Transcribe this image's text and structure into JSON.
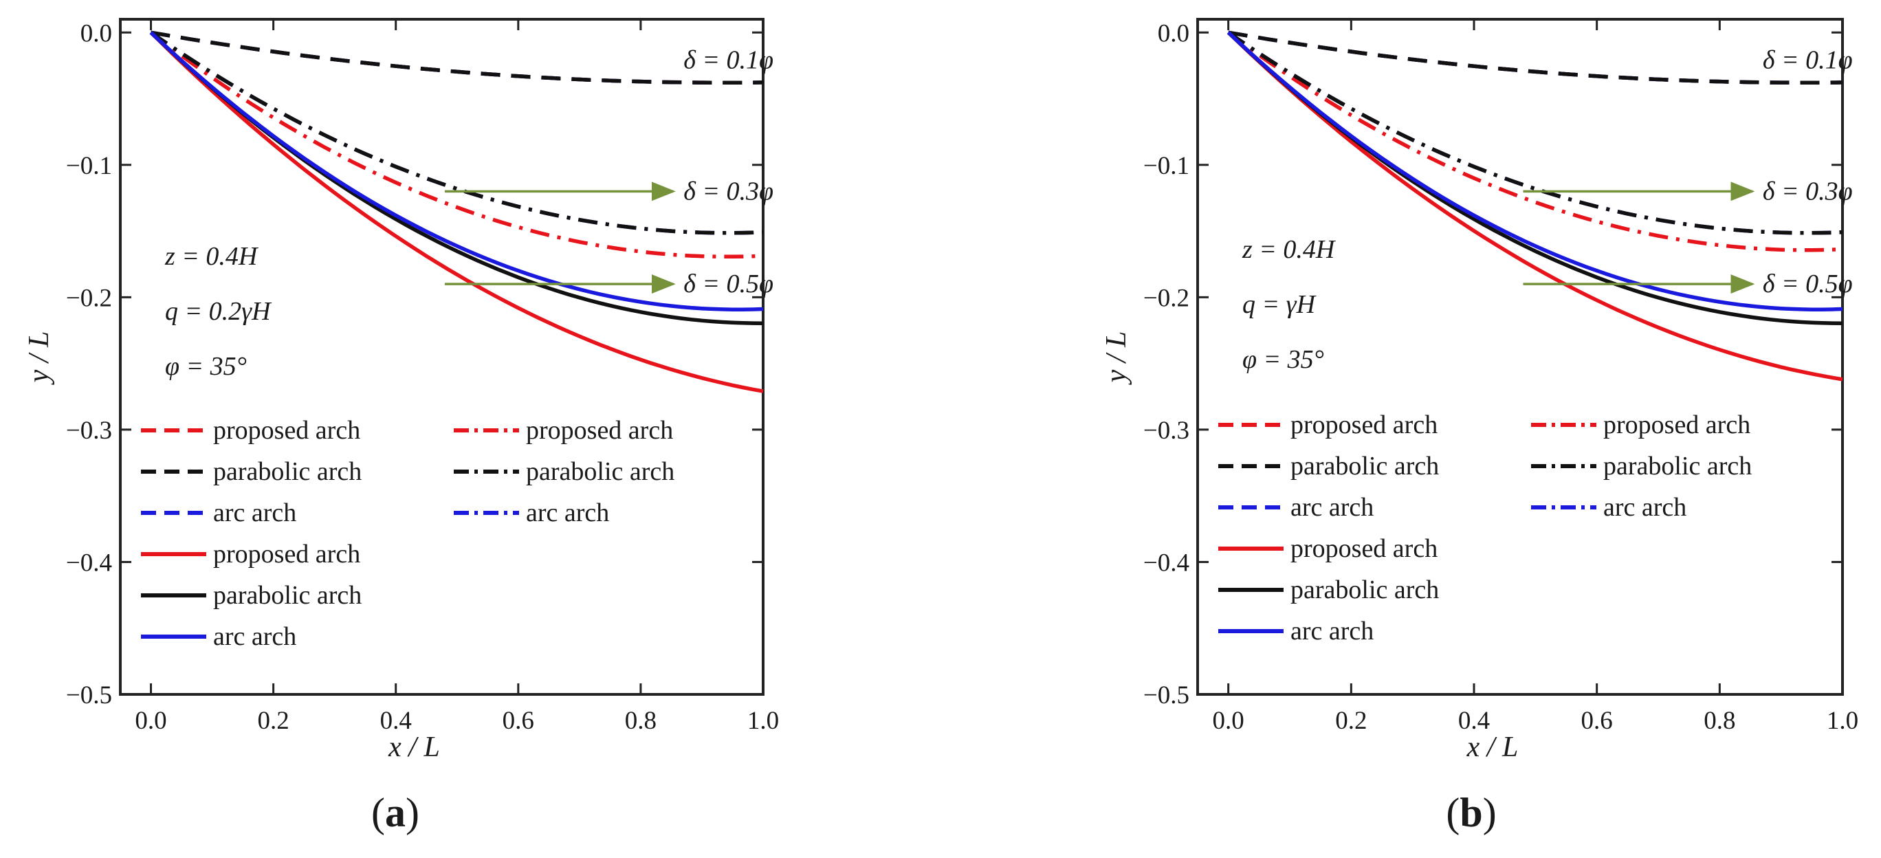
{
  "chart_data": [
    {
      "panel": "a",
      "type": "line",
      "caption": {
        "open": "(",
        "letter": "a",
        "close": ")"
      },
      "xlabel": "x / L",
      "ylabel": "y / L",
      "xlim": [
        -0.05,
        1.0
      ],
      "ylim": [
        -0.5,
        0.01
      ],
      "xticks": [
        "0.0",
        "0.2",
        "0.4",
        "0.6",
        "0.8",
        "1.0"
      ],
      "xtick_values": [
        0.0,
        0.2,
        0.4,
        0.6,
        0.8,
        1.0
      ],
      "yticks": [
        "0.0",
        "−0.1",
        "−0.2",
        "−0.3",
        "−0.4",
        "−0.5"
      ],
      "ytick_values": [
        0.0,
        -0.1,
        -0.2,
        -0.3,
        -0.4,
        -0.5
      ],
      "params": [
        "z = 0.4H",
        "q = 0.2γH",
        "φ = 35°"
      ],
      "annotations": [
        {
          "text": "δ = 0.1φ",
          "x": 0.87,
          "y": -0.021
        },
        {
          "text": "δ = 0.3φ",
          "x": 0.87,
          "y": -0.12,
          "arrow_from_x": 0.48,
          "arrow_to_x": 0.86
        },
        {
          "text": "δ = 0.5φ",
          "x": 0.87,
          "y": -0.19,
          "arrow_from_x": 0.48,
          "arrow_to_x": 0.86
        }
      ],
      "legend": [
        {
          "label": "proposed arch",
          "color": "#e8141b",
          "style": "dashed"
        },
        {
          "label": "parabolic arch",
          "color": "#111111",
          "style": "dashed"
        },
        {
          "label": "arc arch",
          "color": "#1a1adf",
          "style": "dashed"
        },
        {
          "label": "proposed arch",
          "color": "#e8141b",
          "style": "solid"
        },
        {
          "label": "parabolic arch",
          "color": "#111111",
          "style": "solid"
        },
        {
          "label": "arc arch",
          "color": "#1a1adf",
          "style": "solid"
        },
        {
          "label": "proposed arch",
          "color": "#e8141b",
          "style": "dashdot"
        },
        {
          "label": "parabolic arch",
          "color": "#111111",
          "style": "dashdot"
        },
        {
          "label": "arc arch",
          "color": "#1a1adf",
          "style": "dashdot"
        }
      ],
      "series": [
        {
          "name": "proposed arch (δ = 0.1φ)",
          "color": "#e8141b",
          "style": "dashed",
          "x": [
            0,
            0.2,
            0.4,
            0.6,
            0.8,
            1.0
          ],
          "y": [
            0,
            -0.0146,
            -0.0256,
            -0.033,
            -0.0366,
            -0.038
          ]
        },
        {
          "name": "arc arch (δ = 0.1φ)",
          "color": "#1a1adf",
          "style": "dashed",
          "x": [
            0,
            0.2,
            0.4,
            0.6,
            0.8,
            1.0
          ],
          "y": [
            0,
            -0.0146,
            -0.0256,
            -0.033,
            -0.0366,
            -0.038
          ]
        },
        {
          "name": "parabolic arch (δ = 0.1φ)",
          "color": "#111111",
          "style": "dashed",
          "x": [
            0,
            0.2,
            0.4,
            0.6,
            0.8,
            1.0
          ],
          "y": [
            0,
            -0.0146,
            -0.0256,
            -0.033,
            -0.0366,
            -0.038
          ]
        },
        {
          "name": "proposed arch (δ = 0.3φ)",
          "color": "#e8141b",
          "style": "dashdot",
          "x": [
            0,
            0.2,
            0.4,
            0.6,
            0.8,
            1.0
          ],
          "y": [
            0,
            -0.0653,
            -0.1143,
            -0.1469,
            -0.1633,
            -0.17
          ]
        },
        {
          "name": "arc arch (δ = 0.3φ)",
          "color": "#1a1adf",
          "style": "dashdot",
          "x": [
            0,
            0.2,
            0.4,
            0.6,
            0.8,
            1.0
          ],
          "y": [
            0,
            -0.0584,
            -0.1022,
            -0.1314,
            -0.146,
            -0.152
          ]
        },
        {
          "name": "parabolic arch (δ = 0.3φ)",
          "color": "#111111",
          "style": "dashdot",
          "x": [
            0,
            0.2,
            0.4,
            0.6,
            0.8,
            1.0
          ],
          "y": [
            0,
            -0.0584,
            -0.1022,
            -0.1314,
            -0.146,
            -0.152
          ]
        },
        {
          "name": "proposed arch (δ = 0.5φ)",
          "color": "#e8141b",
          "style": "solid",
          "x": [
            0,
            0.2,
            0.4,
            0.6,
            0.8,
            1.0
          ],
          "y": [
            0,
            -0.0845,
            -0.1538,
            -0.2081,
            -0.2472,
            -0.271
          ]
        },
        {
          "name": "parabolic arch (δ = 0.5φ)",
          "color": "#111111",
          "style": "solid",
          "x": [
            0,
            0.2,
            0.4,
            0.6,
            0.8,
            1.0
          ],
          "y": [
            0,
            -0.0799,
            -0.1412,
            -0.1848,
            -0.2106,
            -0.22
          ]
        },
        {
          "name": "arc arch (δ = 0.5φ)",
          "color": "#1a1adf",
          "style": "solid",
          "x": [
            0,
            0.2,
            0.4,
            0.6,
            0.8,
            1.0
          ],
          "y": [
            0,
            -0.0799,
            -0.1389,
            -0.1791,
            -0.202,
            -0.21
          ]
        }
      ]
    },
    {
      "panel": "b",
      "type": "line",
      "caption": {
        "open": "(",
        "letter": "b",
        "close": ")"
      },
      "xlabel": "x / L",
      "ylabel": "y / L",
      "xlim": [
        -0.05,
        1.0
      ],
      "ylim": [
        -0.5,
        0.01
      ],
      "xticks": [
        "0.0",
        "0.2",
        "0.4",
        "0.6",
        "0.8",
        "1.0"
      ],
      "xtick_values": [
        0.0,
        0.2,
        0.4,
        0.6,
        0.8,
        1.0
      ],
      "yticks": [
        "0.0",
        "−0.1",
        "−0.2",
        "−0.3",
        "−0.4",
        "−0.5"
      ],
      "ytick_values": [
        0.0,
        -0.1,
        -0.2,
        -0.3,
        -0.4,
        -0.5
      ],
      "params": [
        "z = 0.4H",
        "q = γH",
        "φ = 35°"
      ],
      "annotations": [
        {
          "text": "δ = 0.1φ",
          "x": 0.87,
          "y": -0.021
        },
        {
          "text": "δ = 0.3φ",
          "x": 0.87,
          "y": -0.12,
          "arrow_from_x": 0.48,
          "arrow_to_x": 0.86
        },
        {
          "text": "δ = 0.5φ",
          "x": 0.87,
          "y": -0.19,
          "arrow_from_x": 0.48,
          "arrow_to_x": 0.86
        }
      ],
      "legend": [
        {
          "label": "proposed arch",
          "color": "#e8141b",
          "style": "dashed"
        },
        {
          "label": "parabolic arch",
          "color": "#111111",
          "style": "dashed"
        },
        {
          "label": "arc arch",
          "color": "#1a1adf",
          "style": "dashed"
        },
        {
          "label": "proposed arch",
          "color": "#e8141b",
          "style": "solid"
        },
        {
          "label": "parabolic arch",
          "color": "#111111",
          "style": "solid"
        },
        {
          "label": "arc arch",
          "color": "#1a1adf",
          "style": "solid"
        },
        {
          "label": "proposed arch",
          "color": "#e8141b",
          "style": "dashdot"
        },
        {
          "label": "parabolic arch",
          "color": "#111111",
          "style": "dashdot"
        },
        {
          "label": "arc arch",
          "color": "#1a1adf",
          "style": "dashdot"
        }
      ],
      "series": [
        {
          "name": "proposed arch (δ = 0.1φ)",
          "color": "#e8141b",
          "style": "dashed",
          "x": [
            0,
            0.2,
            0.4,
            0.6,
            0.8,
            1.0
          ],
          "y": [
            0,
            -0.0146,
            -0.0256,
            -0.033,
            -0.0366,
            -0.038
          ]
        },
        {
          "name": "arc arch (δ = 0.1φ)",
          "color": "#1a1adf",
          "style": "dashed",
          "x": [
            0,
            0.2,
            0.4,
            0.6,
            0.8,
            1.0
          ],
          "y": [
            0,
            -0.0146,
            -0.0256,
            -0.033,
            -0.0366,
            -0.038
          ]
        },
        {
          "name": "parabolic arch (δ = 0.1φ)",
          "color": "#111111",
          "style": "dashed",
          "x": [
            0,
            0.2,
            0.4,
            0.6,
            0.8,
            1.0
          ],
          "y": [
            0,
            -0.0146,
            -0.0256,
            -0.033,
            -0.0366,
            -0.038
          ]
        },
        {
          "name": "proposed arch (δ = 0.3φ)",
          "color": "#e8141b",
          "style": "dashdot",
          "x": [
            0,
            0.2,
            0.4,
            0.6,
            0.8,
            1.0
          ],
          "y": [
            0,
            -0.0634,
            -0.111,
            -0.1426,
            -0.1585,
            -0.165
          ]
        },
        {
          "name": "arc arch (δ = 0.3φ)",
          "color": "#1a1adf",
          "style": "dashdot",
          "x": [
            0,
            0.2,
            0.4,
            0.6,
            0.8,
            1.0
          ],
          "y": [
            0,
            -0.0584,
            -0.1022,
            -0.1314,
            -0.146,
            -0.152
          ]
        },
        {
          "name": "parabolic arch (δ = 0.3φ)",
          "color": "#111111",
          "style": "dashdot",
          "x": [
            0,
            0.2,
            0.4,
            0.6,
            0.8,
            1.0
          ],
          "y": [
            0,
            -0.0584,
            -0.1022,
            -0.1314,
            -0.146,
            -0.152
          ]
        },
        {
          "name": "proposed arch (δ = 0.5φ)",
          "color": "#e8141b",
          "style": "solid",
          "x": [
            0,
            0.2,
            0.4,
            0.6,
            0.8,
            1.0
          ],
          "y": [
            0,
            -0.0824,
            -0.1498,
            -0.2023,
            -0.2397,
            -0.262
          ]
        },
        {
          "name": "parabolic arch (δ = 0.5φ)",
          "color": "#111111",
          "style": "solid",
          "x": [
            0,
            0.2,
            0.4,
            0.6,
            0.8,
            1.0
          ],
          "y": [
            0,
            -0.0799,
            -0.1412,
            -0.1848,
            -0.2106,
            -0.22
          ]
        },
        {
          "name": "arc arch (δ = 0.5φ)",
          "color": "#1a1adf",
          "style": "solid",
          "x": [
            0,
            0.2,
            0.4,
            0.6,
            0.8,
            1.0
          ],
          "y": [
            0,
            -0.0799,
            -0.1389,
            -0.1791,
            -0.202,
            -0.21
          ]
        }
      ]
    }
  ]
}
